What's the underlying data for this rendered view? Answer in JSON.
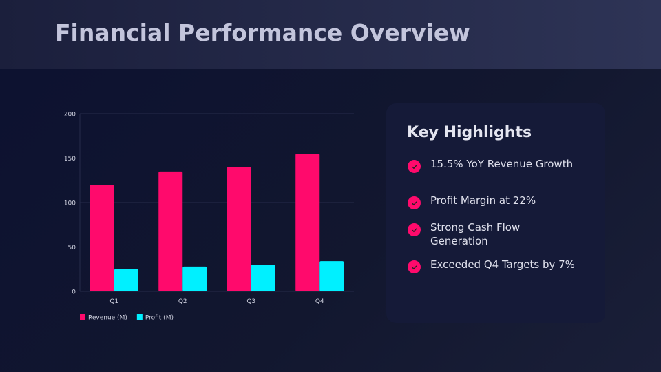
{
  "title": "Financial Performance Overview",
  "chart_data": {
    "type": "bar",
    "categories": [
      "Q1",
      "Q2",
      "Q3",
      "Q4"
    ],
    "series": [
      {
        "name": "Revenue (M)",
        "values": [
          120,
          135,
          140,
          155
        ],
        "color": "#ff0a6c"
      },
      {
        "name": "Profit (M)",
        "values": [
          25,
          28,
          30,
          34
        ],
        "color": "#00f0ff"
      }
    ],
    "yticks": [
      0,
      50,
      100,
      150,
      200
    ],
    "ylim": [
      0,
      200
    ],
    "grid": true,
    "legend": "bottom-left",
    "title": "",
    "xlabel": "",
    "ylabel": ""
  },
  "highlights": {
    "title": "Key Highlights",
    "items": [
      "15.5% YoY Revenue Growth",
      "Profit Margin at 22%",
      "Strong Cash Flow Generation",
      "Exceeded Q4 Targets by 7%"
    ]
  }
}
